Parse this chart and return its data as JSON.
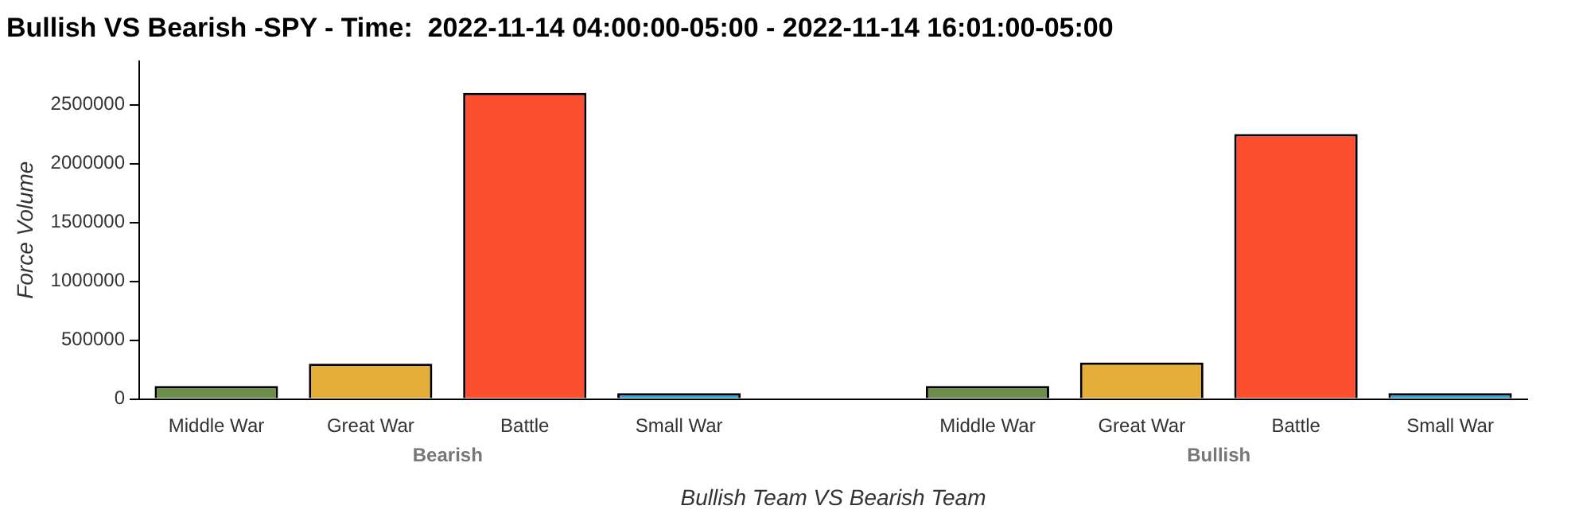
{
  "chart_data": {
    "type": "bar",
    "title": "Bullish VS Bearish -SPY - Time:  2022-11-14 04:00:00-05:00 - 2022-11-14 16:01:00-05:00",
    "categories": [
      "Middle War",
      "Great War",
      "Battle",
      "Small War",
      null,
      "Middle War",
      "Great War",
      "Battle",
      "Small War"
    ],
    "values": [
      110000,
      300000,
      2600000,
      50000,
      null,
      110000,
      310000,
      2250000,
      50000
    ],
    "colors": [
      "#6b8f4b",
      "#e5ae38",
      "#fc4f30",
      "#30a2da",
      "#ffffff",
      "#6b8f4b",
      "#e5ae38",
      "#fc4f30",
      "#30a2da"
    ],
    "ylim": [
      0,
      2870000
    ],
    "yticks": [
      0,
      500000,
      1000000,
      1500000,
      2000000,
      2500000
    ],
    "xlabel": "Bullish Team VS Bearish Team",
    "ylabel": "Force Volume",
    "annotations": [
      "Bearish",
      "Bullish"
    ],
    "grid": false,
    "legend": false
  }
}
